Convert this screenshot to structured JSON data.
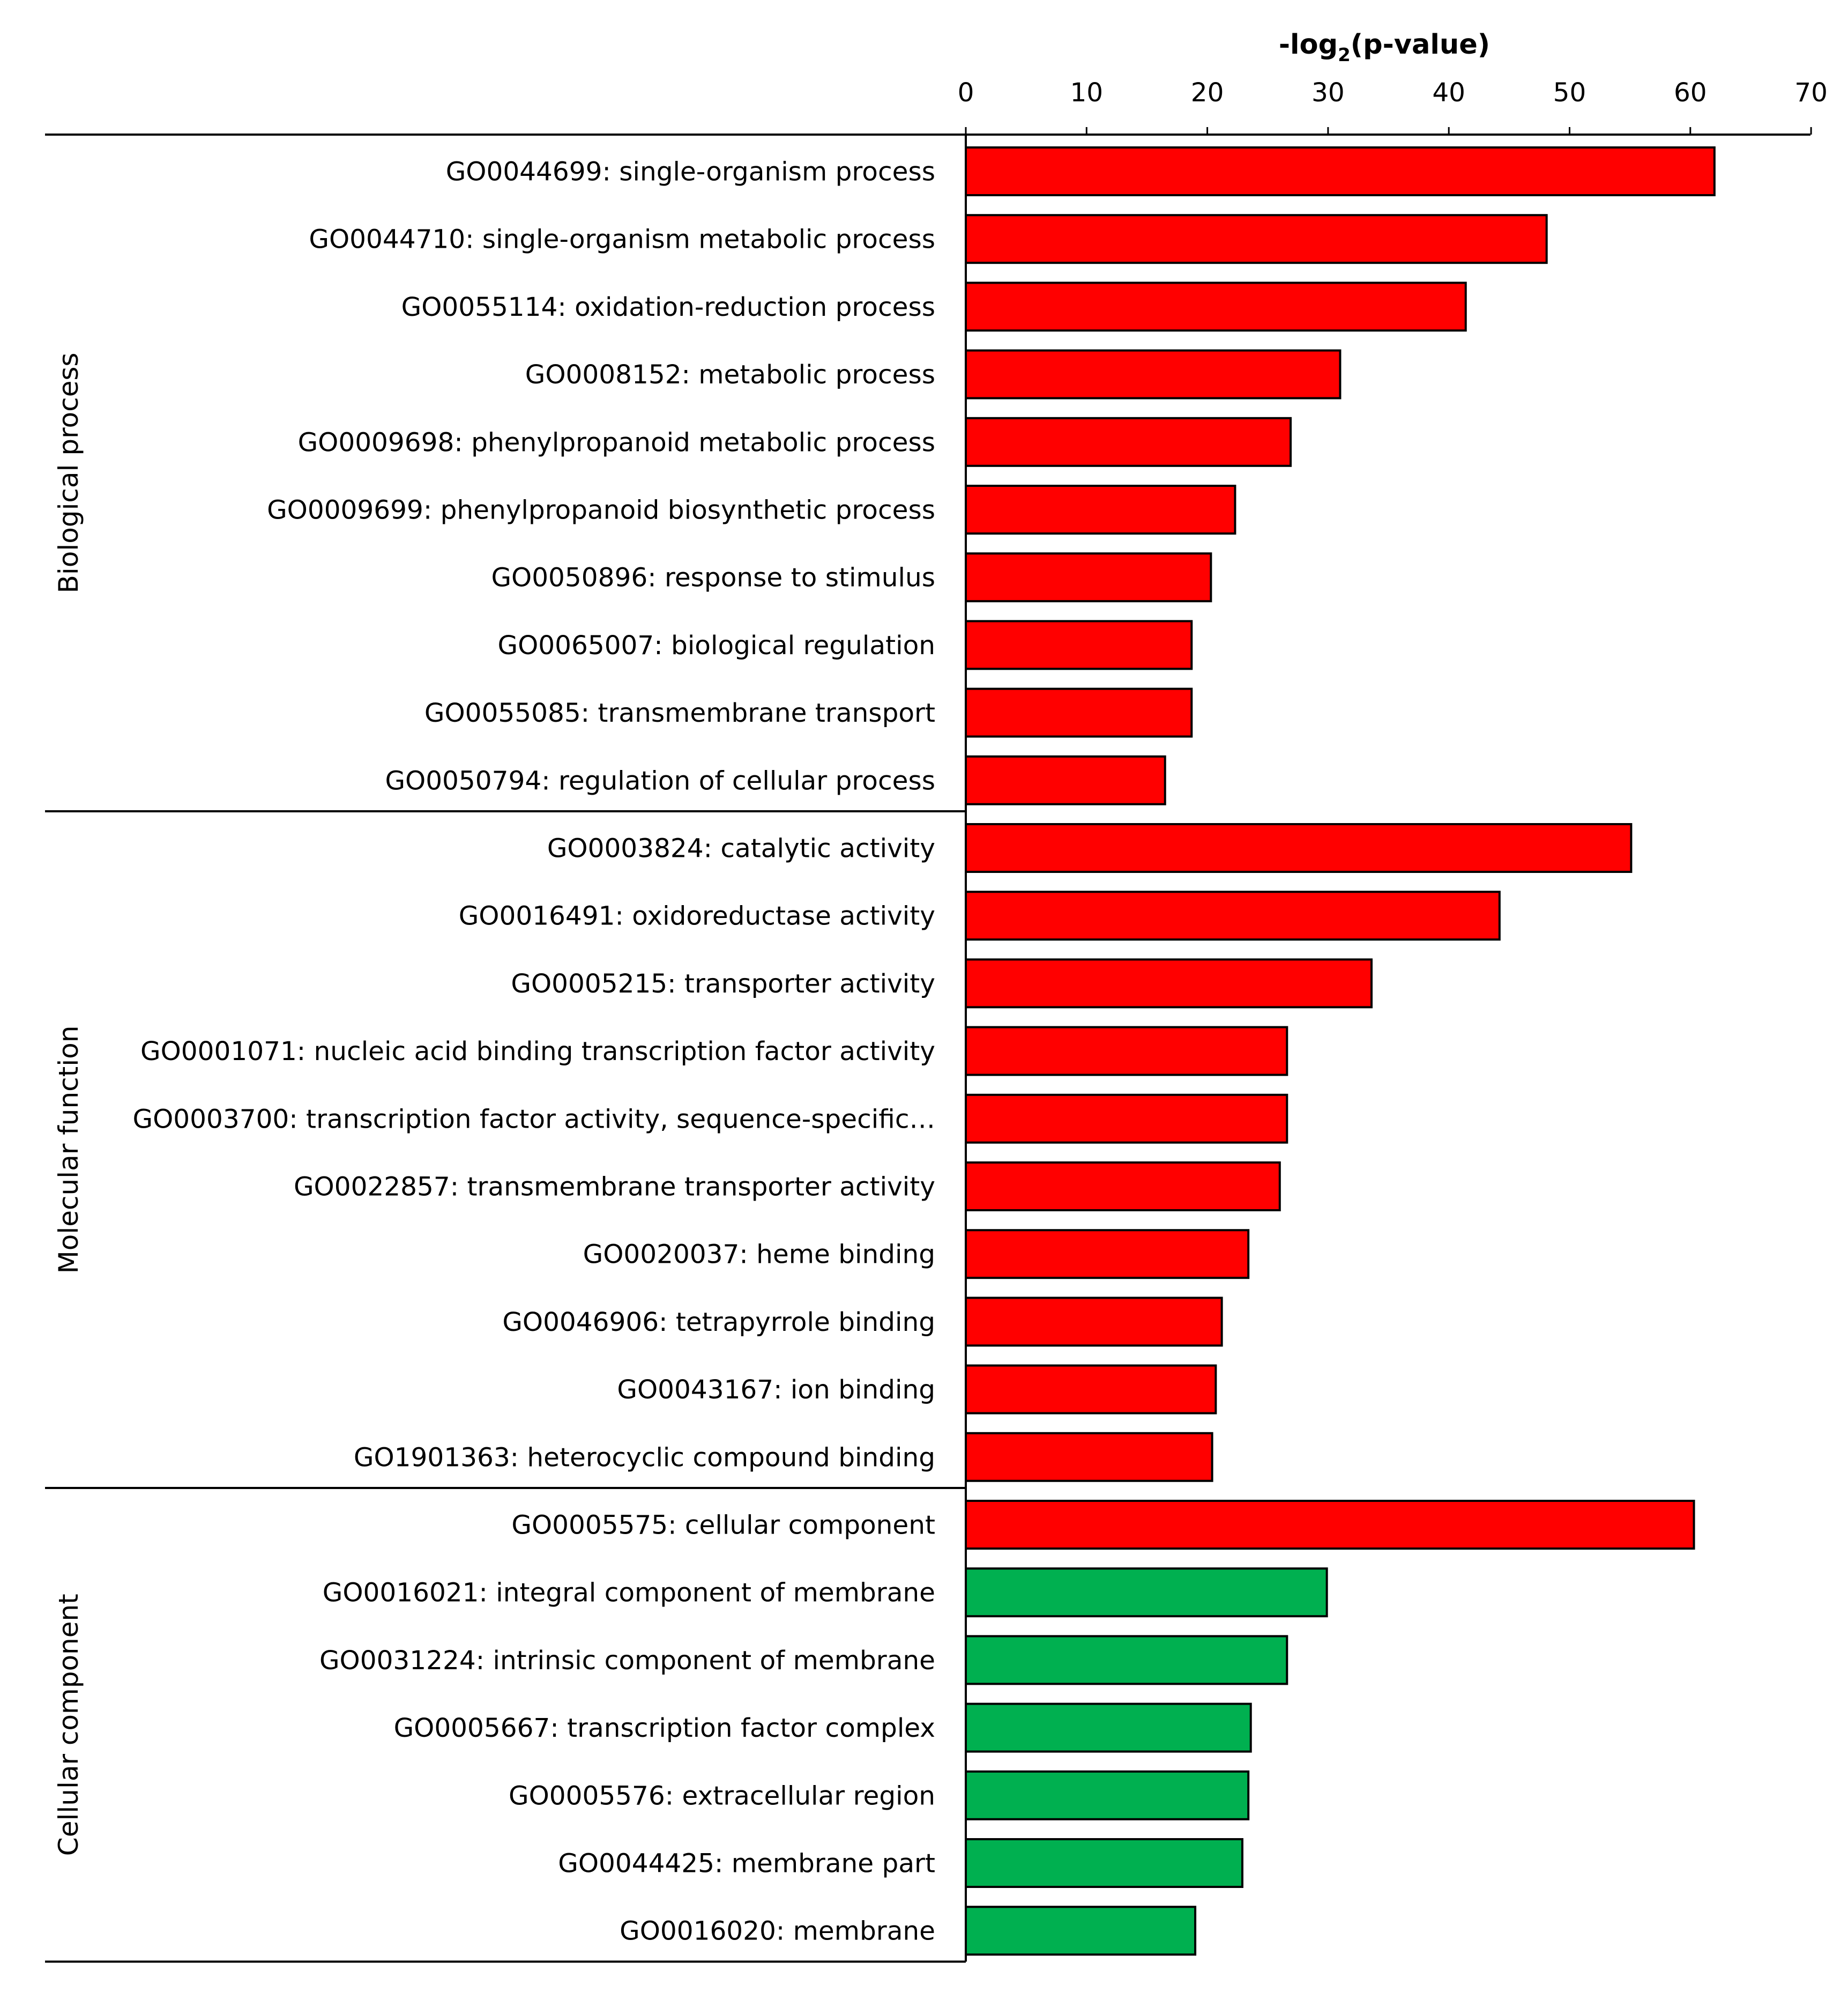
{
  "chart_data": {
    "type": "bar",
    "orientation": "horizontal",
    "title": "",
    "xlabel": "-log",
    "xlabel_subscript": "2",
    "xlabel_suffix": "(p-value)",
    "ylabel": "",
    "xlim": [
      0,
      70
    ],
    "xticks": [
      0,
      10,
      20,
      30,
      40,
      50,
      60,
      70
    ],
    "axis_position": "top",
    "colors": {
      "up": "#FF0000",
      "down": "#00B050",
      "edge": "#000000"
    },
    "groups": [
      {
        "name": "Biological process",
        "bars": [
          {
            "label": "GO0044699: single-organism process",
            "value": 62.0,
            "color": "up"
          },
          {
            "label": "GO0044710: single-organism metabolic process",
            "value": 48.1,
            "color": "up"
          },
          {
            "label": "GO0055114: oxidation-reduction process",
            "value": 41.4,
            "color": "up"
          },
          {
            "label": "GO0008152: metabolic process",
            "value": 31.0,
            "color": "up"
          },
          {
            "label": "GO0009698: phenylpropanoid metabolic process",
            "value": 26.9,
            "color": "up"
          },
          {
            "label": "GO0009699: phenylpropanoid biosynthetic process",
            "value": 22.3,
            "color": "up"
          },
          {
            "label": "GO0050896: response to stimulus",
            "value": 20.3,
            "color": "up"
          },
          {
            "label": "GO0065007: biological regulation",
            "value": 18.7,
            "color": "up"
          },
          {
            "label": "GO0055085: transmembrane transport",
            "value": 18.7,
            "color": "up"
          },
          {
            "label": "GO0050794: regulation of cellular process",
            "value": 16.5,
            "color": "up"
          }
        ]
      },
      {
        "name": "Molecular function",
        "bars": [
          {
            "label": "GO0003824: catalytic activity",
            "value": 55.1,
            "color": "up"
          },
          {
            "label": "GO0016491: oxidoreductase activity",
            "value": 44.2,
            "color": "up"
          },
          {
            "label": "GO0005215: transporter activity",
            "value": 33.6,
            "color": "up"
          },
          {
            "label": "GO0001071: nucleic acid binding transcription factor activity",
            "value": 26.6,
            "color": "up"
          },
          {
            "label": "GO0003700: transcription factor activity, sequence-specific…",
            "value": 26.6,
            "color": "up"
          },
          {
            "label": "GO0022857: transmembrane transporter activity",
            "value": 26.0,
            "color": "up"
          },
          {
            "label": "GO0020037: heme binding",
            "value": 23.4,
            "color": "up"
          },
          {
            "label": "GO0046906: tetrapyrrole binding",
            "value": 21.2,
            "color": "up"
          },
          {
            "label": "GO0043167: ion binding",
            "value": 20.7,
            "color": "up"
          },
          {
            "label": "GO1901363: heterocyclic compound binding",
            "value": 20.4,
            "color": "up"
          }
        ]
      },
      {
        "name": "Cellular component",
        "bars": [
          {
            "label": "GO0005575: cellular component",
            "value": 60.3,
            "color": "up"
          },
          {
            "label": "GO0016021: integral component of membrane",
            "value": 29.9,
            "color": "down"
          },
          {
            "label": "GO0031224: intrinsic component of membrane",
            "value": 26.6,
            "color": "down"
          },
          {
            "label": "GO0005667: transcription factor complex",
            "value": 23.6,
            "color": "down"
          },
          {
            "label": "GO0005576: extracellular region",
            "value": 23.4,
            "color": "down"
          },
          {
            "label": "GO0044425: membrane part",
            "value": 22.9,
            "color": "down"
          },
          {
            "label": "GO0016020: membrane",
            "value": 19.0,
            "color": "down"
          }
        ]
      }
    ]
  }
}
